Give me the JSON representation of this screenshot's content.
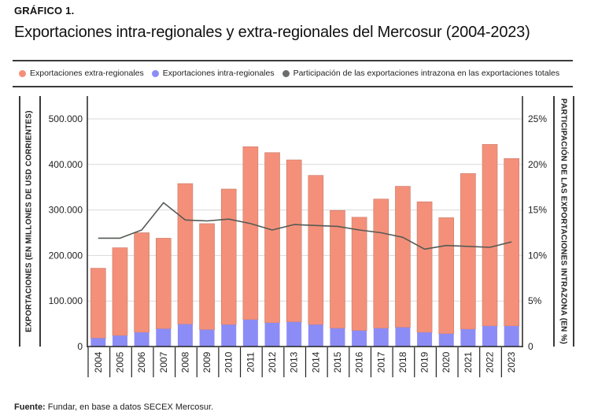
{
  "kicker": "GRÁFICO 1.",
  "title": "Exportaciones intra-regionales y extra-regionales del Mercosur (2004-2023)",
  "footer": {
    "label": "Fuente:",
    "text": " Fundar, en base a datos SECEX Mercosur."
  },
  "colors": {
    "extra": "#f4907a",
    "intra": "#8c8cf6",
    "line": "#555a55",
    "legend_line": "#6b6f6b"
  },
  "chart_data": {
    "type": "bar",
    "stacked": true,
    "title": "Exportaciones intra-regionales y extra-regionales del Mercosur (2004-2023)",
    "xlabel": "",
    "ylabel": "EXPORTACIONES (EN MILLONES DE USD CORRIENTES)",
    "y2label": "PARTICIPACIÓN DE LAS EXPORTACIONES INTRAZONA (EN %)",
    "ylim": [
      0,
      500000
    ],
    "y2lim": [
      0,
      25
    ],
    "grid": true,
    "legend_position": "top",
    "categories": [
      "2004",
      "2005",
      "2006",
      "2007",
      "2008",
      "2009",
      "2010",
      "2011",
      "2012",
      "2013",
      "2014",
      "2015",
      "2016",
      "2017",
      "2018",
      "2019",
      "2020",
      "2021",
      "2022",
      "2023"
    ],
    "yticks": [
      {
        "value": 0,
        "label": "0"
      },
      {
        "value": 100000,
        "label": "100.000"
      },
      {
        "value": 200000,
        "label": "200.000"
      },
      {
        "value": 300000,
        "label": "300.000"
      },
      {
        "value": 400000,
        "label": "400.000"
      },
      {
        "value": 500000,
        "label": "500.000"
      }
    ],
    "y2ticks": [
      {
        "value": 0,
        "label": "0"
      },
      {
        "value": 5,
        "label": "5%"
      },
      {
        "value": 10,
        "label": "10%"
      },
      {
        "value": 15,
        "label": "15%"
      },
      {
        "value": 20,
        "label": "20%"
      },
      {
        "value": 25,
        "label": "25%"
      }
    ],
    "series": [
      {
        "name": "Exportaciones intra-regionales",
        "type": "bar",
        "axis": "left",
        "values": [
          18500,
          24000,
          31000,
          39000,
          49000,
          37000,
          48000,
          59000,
          52000,
          54000,
          48000,
          40000,
          35000,
          40000,
          42000,
          31000,
          28000,
          38000,
          45000,
          45000
        ]
      },
      {
        "name": "Exportaciones extra-regionales",
        "type": "bar",
        "axis": "left",
        "values": [
          153500,
          193000,
          219000,
          199000,
          309000,
          233000,
          298000,
          380000,
          374000,
          356000,
          328000,
          259000,
          249000,
          284000,
          310000,
          287000,
          255000,
          342000,
          399000,
          368000
        ]
      },
      {
        "name": "Participación de las exportaciones intrazona en las exportaciones totales",
        "type": "line",
        "axis": "right",
        "values": [
          11.9,
          11.9,
          12.8,
          15.8,
          13.9,
          13.8,
          14.0,
          13.5,
          12.8,
          13.4,
          13.3,
          13.2,
          12.8,
          12.5,
          12.0,
          10.7,
          11.1,
          11.0,
          10.9,
          11.5
        ]
      }
    ],
    "legend": [
      {
        "label": "Exportaciones extra-regionales",
        "color_key": "extra"
      },
      {
        "label": "Exportaciones intra-regionales",
        "color_key": "intra"
      },
      {
        "label": "Participación de las exportaciones intrazona en las exportaciones totales",
        "color_key": "legend_line"
      }
    ]
  }
}
